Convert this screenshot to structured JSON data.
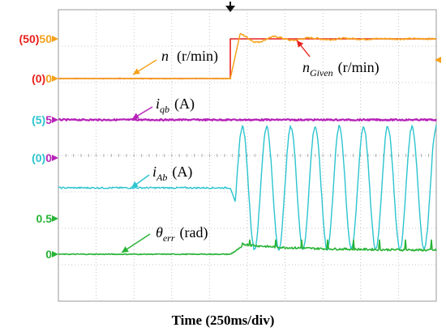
{
  "chart_data": {
    "type": "line",
    "xlabel": "Time (250ms/div)",
    "x_divisions": 10,
    "step_at_div": 4.55,
    "grid": true,
    "colors": {
      "n": "#f5a21c",
      "n_given": "#e8211b",
      "iqb": "#b623b7",
      "iab": "#2cc4cf",
      "theta": "#27b335",
      "trigger": "#111111"
    },
    "channel_markers": [
      {
        "label": "(50)",
        "label_color": "#e8211b",
        "value": "50",
        "value_color": "#f5a21c",
        "arrow_color": "#f5a21c"
      },
      {
        "label": "(0)",
        "label_color": "#e8211b",
        "value": "0",
        "value_color": "#f5a21c",
        "arrow_color": "#f5a21c"
      },
      {
        "label": "(5)",
        "label_color": "#2cc4cf",
        "value": "5",
        "value_color": "#b623b7",
        "arrow_color": "#b623b7"
      },
      {
        "label": "(0)",
        "label_color": "#2cc4cf",
        "value": "0",
        "value_color": "#b623b7",
        "arrow_color": "#b623b7"
      },
      {
        "label": "",
        "label_color": "#27b335",
        "value": "0.5",
        "value_color": "#27b335",
        "arrow_color": "#27b335"
      },
      {
        "label": "",
        "label_color": "#27b335",
        "value": "0",
        "value_color": "#27b335",
        "arrow_color": "#27b335"
      }
    ],
    "annotations": {
      "n": {
        "sym": "n",
        "sub": "",
        "unit": "(r/min)"
      },
      "n_given": {
        "sym": "n",
        "sub": "Given",
        "unit": "(r/min)"
      },
      "iqb": {
        "sym": "i",
        "sub": "qb",
        "unit": "(A)"
      },
      "iab": {
        "sym": "i",
        "sub": "Ab",
        "unit": "(A)"
      },
      "theta": {
        "sym": "θ",
        "sub": "err",
        "unit": "(rad)"
      }
    },
    "series": [
      {
        "key": "n_given",
        "unit": "r/min",
        "before": 0,
        "after": 50
      },
      {
        "key": "n",
        "unit": "r/min",
        "before": 0,
        "after": 50,
        "overshoot": 56
      },
      {
        "key": "iqb",
        "unit": "A",
        "before": 5,
        "after": 5
      },
      {
        "key": "iab",
        "unit": "A",
        "before": 0,
        "after_amplitude": 5,
        "cycles_after_step": 8.5
      },
      {
        "key": "theta",
        "unit": "rad",
        "before": 0,
        "after": 0.1,
        "spike_peak": 0.2
      }
    ]
  }
}
